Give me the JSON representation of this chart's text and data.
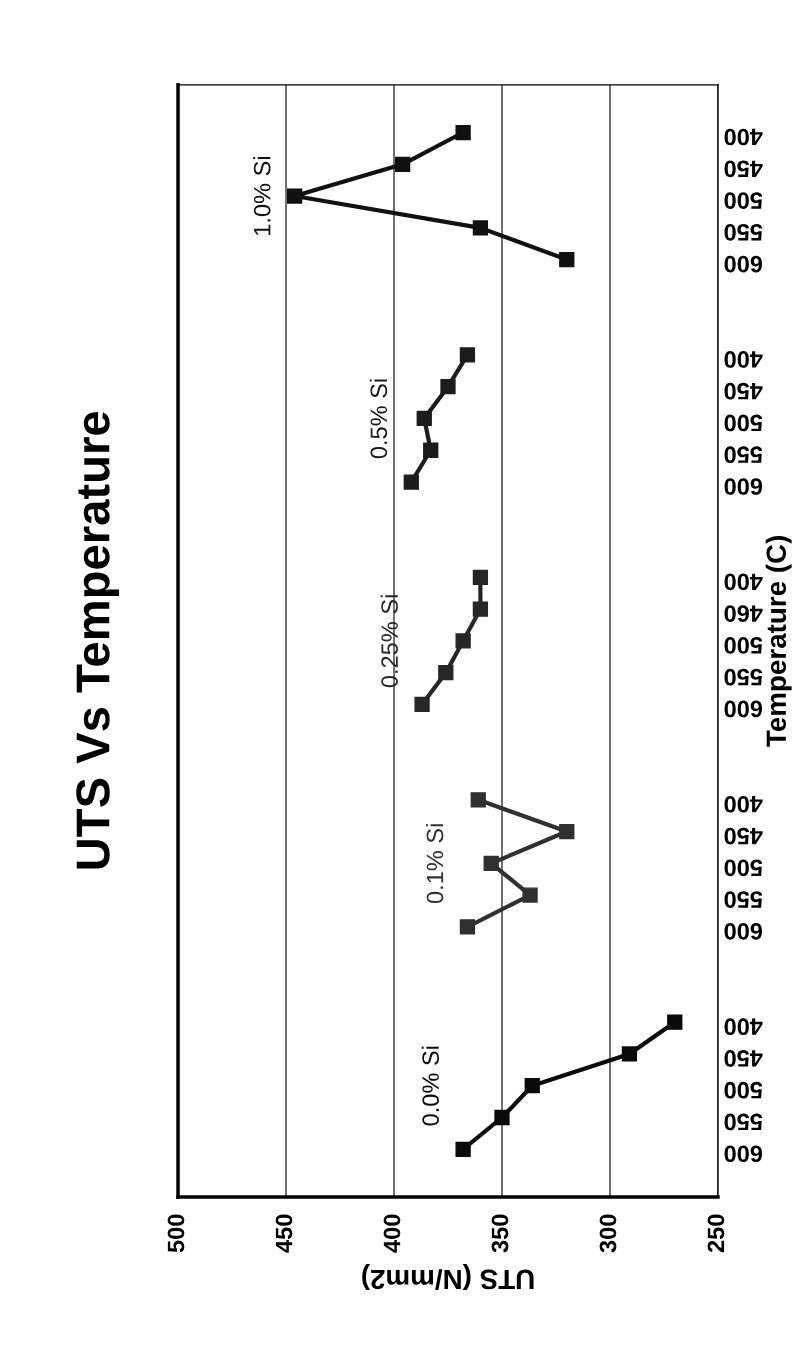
{
  "chart_data": {
    "type": "line",
    "orientation": "horizontal",
    "title": "UTS Vs Temperature",
    "xlabel": "UTS (N/mm2)",
    "ylabel": "Temperature (C)",
    "categories": [
      null,
      "400",
      "450",
      "500",
      "550",
      "600",
      null,
      null,
      "400",
      "450",
      "500",
      "550",
      "600",
      null,
      null,
      "400",
      "460",
      "500",
      "550",
      "600",
      null,
      null,
      "400",
      "450",
      "500",
      "550",
      "600",
      null,
      null,
      "400",
      "450",
      "500",
      "550",
      "600",
      null
    ],
    "series": [
      {
        "name": "1.0% Si",
        "color": "#111111",
        "values": [
          null,
          368,
          396,
          446,
          360,
          320,
          null,
          null,
          null,
          null,
          null,
          null,
          null,
          null,
          null,
          null,
          null,
          null,
          null,
          null,
          null,
          null,
          null,
          null,
          null,
          null,
          null,
          null,
          null,
          null,
          null,
          null,
          null,
          null,
          null
        ]
      },
      {
        "name": "0.5% Si",
        "color": "#1c1c1c",
        "values": [
          null,
          null,
          null,
          null,
          null,
          null,
          null,
          null,
          366,
          375,
          386,
          383,
          392,
          null,
          null,
          null,
          null,
          null,
          null,
          null,
          null,
          null,
          null,
          null,
          null,
          null,
          null,
          null,
          null,
          null,
          null,
          null,
          null,
          null,
          null
        ]
      },
      {
        "name": "0.25% Si",
        "color": "#262626",
        "values": [
          null,
          null,
          null,
          null,
          null,
          null,
          null,
          null,
          null,
          null,
          null,
          null,
          null,
          null,
          null,
          360,
          360,
          368,
          376,
          387,
          null,
          null,
          null,
          null,
          null,
          null,
          null,
          null,
          null,
          null,
          null,
          null,
          null,
          null,
          null
        ]
      },
      {
        "name": "0.1% Si",
        "color": "#303030",
        "values": [
          null,
          null,
          null,
          null,
          null,
          null,
          null,
          null,
          null,
          null,
          null,
          null,
          null,
          null,
          null,
          null,
          null,
          null,
          null,
          null,
          null,
          null,
          361,
          320,
          355,
          337,
          366,
          null,
          null,
          null,
          null,
          null,
          null,
          null,
          null
        ]
      },
      {
        "name": "0.0% Si",
        "color": "#0a0a0a",
        "values": [
          null,
          null,
          null,
          null,
          null,
          null,
          null,
          null,
          null,
          null,
          null,
          null,
          null,
          null,
          null,
          null,
          null,
          null,
          null,
          null,
          null,
          null,
          null,
          null,
          null,
          null,
          null,
          null,
          null,
          270,
          291,
          336,
          350,
          368,
          null
        ]
      }
    ],
    "xlim": [
      500,
      250
    ],
    "xticks": [
      500,
      450,
      400,
      350,
      300,
      250
    ],
    "grid": "x",
    "marker": "square",
    "line_style": "solid"
  }
}
